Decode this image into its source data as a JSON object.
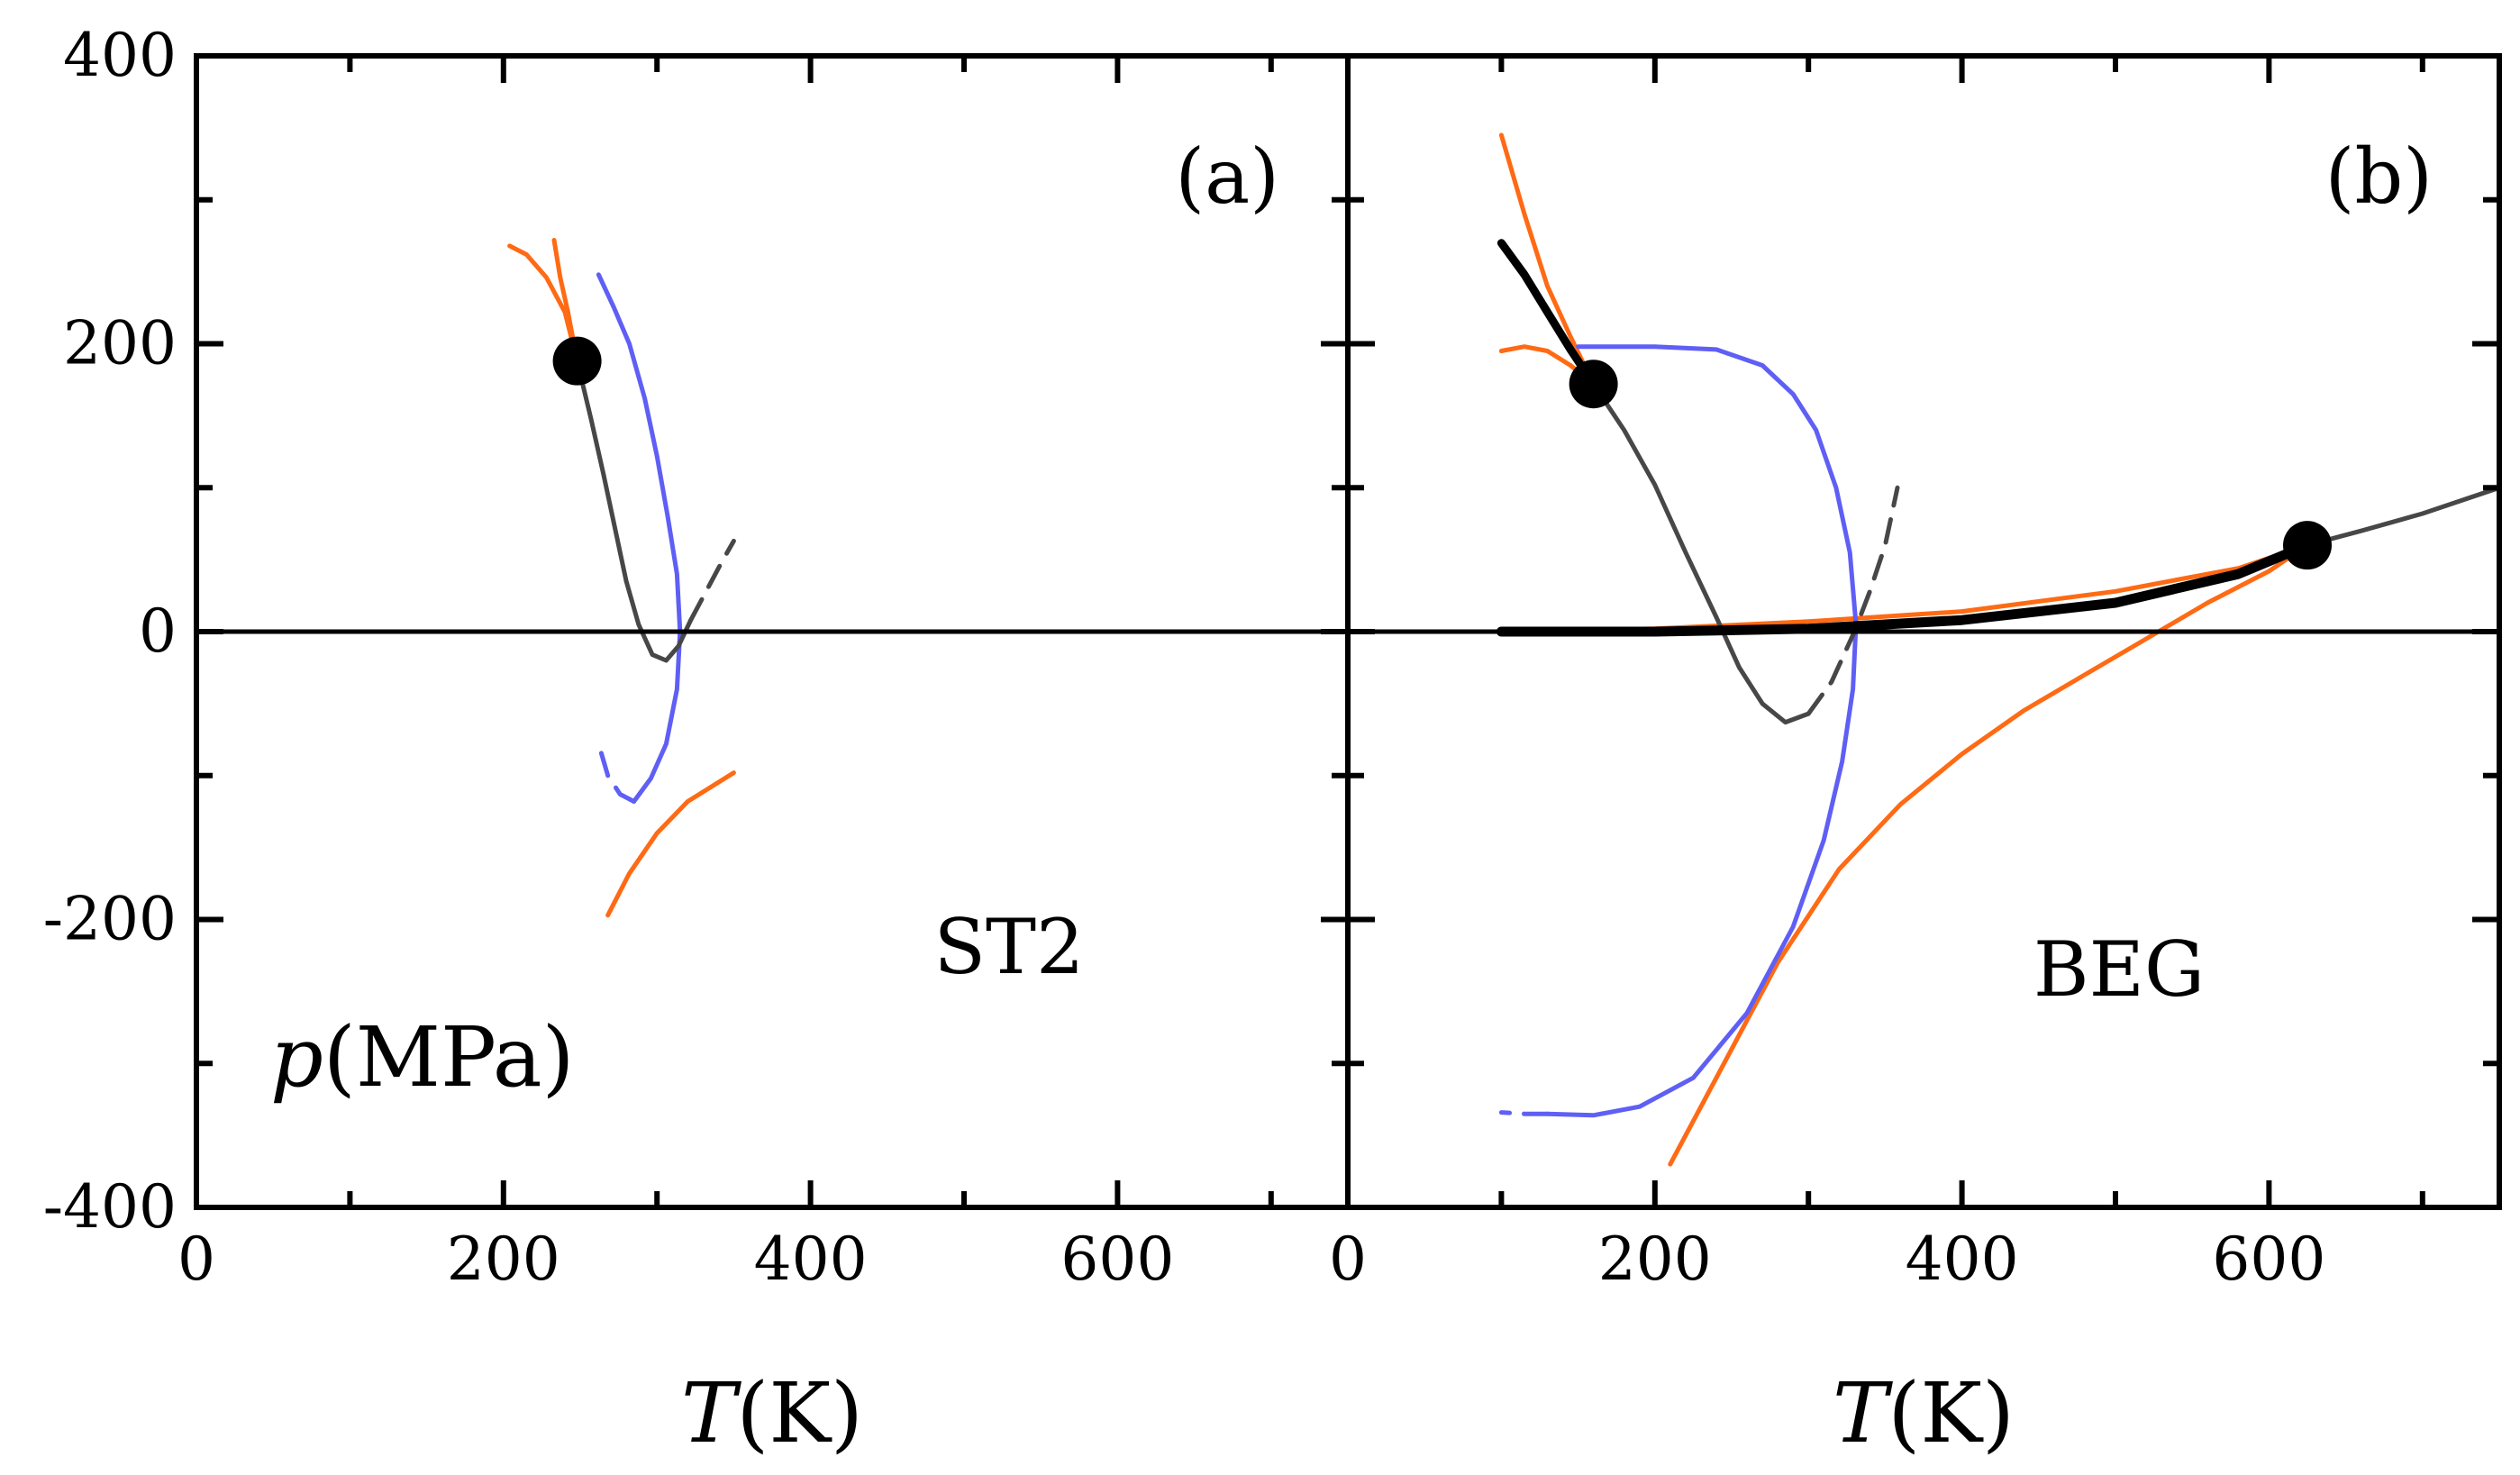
{
  "chart_data": [
    {
      "type": "line",
      "panel": "(a)",
      "model": "ST2",
      "xlabel": {
        "var": "T",
        "unit": "(K)"
      },
      "ylabel": {
        "var": "p",
        "unit": "(MPa)"
      },
      "xlim": [
        0,
        750
      ],
      "ylim": [
        -400,
        400
      ],
      "xticks": [
        0,
        200,
        400,
        600
      ],
      "yticks": [
        400,
        200,
        0,
        -200,
        -400
      ],
      "ytick_labels": [
        "400",
        "200",
        "0",
        "-200",
        "-400"
      ],
      "series": [
        {
          "color": "#ff6a14",
          "style": "solid",
          "width": 5,
          "points": [
            [
              204,
              268
            ],
            [
              215,
              262
            ],
            [
              228,
              246
            ],
            [
              240,
              222
            ],
            [
              248,
              188
            ]
          ]
        },
        {
          "color": "#ff6a14",
          "style": "solid",
          "width": 5,
          "points": [
            [
              233,
              272
            ],
            [
              237,
              246
            ],
            [
              242,
              222
            ],
            [
              248,
              188
            ]
          ]
        },
        {
          "color": "#ff6a14",
          "style": "solid",
          "width": 5,
          "points": [
            [
              268,
              -197
            ],
            [
              282,
              -168
            ],
            [
              300,
              -140
            ],
            [
              320,
              -118
            ],
            [
              350,
              -98
            ]
          ]
        },
        {
          "color": "#5f5ff5",
          "style": "solid",
          "width": 5,
          "points": [
            [
              262,
              248
            ],
            [
              272,
              225
            ],
            [
              282,
              200
            ],
            [
              292,
              162
            ],
            [
              300,
              122
            ],
            [
              307,
              80
            ],
            [
              313,
              40
            ],
            [
              315,
              0
            ],
            [
              313,
              -40
            ],
            [
              306,
              -78
            ],
            [
              296,
              -102
            ],
            [
              285,
              -118
            ]
          ]
        },
        {
          "color": "#5f5ff5",
          "style": "dashed",
          "width": 5,
          "points": [
            [
              285,
              -118
            ],
            [
              276,
              -113
            ],
            [
              268,
              -100
            ],
            [
              262,
              -78
            ]
          ]
        },
        {
          "color": "#474747",
          "style": "solid",
          "width": 5,
          "points": [
            [
              248,
              188
            ],
            [
              257,
              148
            ],
            [
              265,
              110
            ],
            [
              272,
              75
            ],
            [
              280,
              35
            ],
            [
              288,
              5
            ],
            [
              297,
              -16
            ],
            [
              306,
              -20
            ],
            [
              314,
              -10
            ],
            [
              322,
              8
            ]
          ]
        },
        {
          "color": "#474747",
          "style": "dashed",
          "width": 5,
          "points": [
            [
              322,
              8
            ],
            [
              332,
              28
            ],
            [
              342,
              48
            ],
            [
              350,
              63
            ]
          ]
        },
        {
          "color": "#000000",
          "style": "solid",
          "width": 5,
          "points": [
            [
              0,
              0
            ],
            [
              750,
              0
            ]
          ]
        }
      ],
      "markers": [
        {
          "x": 248,
          "y": 188
        }
      ]
    },
    {
      "type": "line",
      "panel": "(b)",
      "model": "BEG",
      "xlabel": {
        "var": "T",
        "unit": "(K)"
      },
      "xlim": [
        0,
        750
      ],
      "ylim": [
        -400,
        400
      ],
      "xticks": [
        0,
        200,
        400,
        600
      ],
      "series": [
        {
          "color": "#ff6a14",
          "style": "solid",
          "width": 5,
          "points": [
            [
              100,
              345
            ],
            [
              115,
              290
            ],
            [
              130,
              240
            ],
            [
              145,
              205
            ],
            [
              160,
              172
            ]
          ]
        },
        {
          "color": "#ff6a14",
          "style": "solid",
          "width": 5,
          "points": [
            [
              100,
              195
            ],
            [
              115,
              198
            ],
            [
              130,
              195
            ],
            [
              145,
              185
            ],
            [
              160,
              172
            ]
          ]
        },
        {
          "color": "#ff6a14",
          "style": "solid",
          "width": 5,
          "points": [
            [
              100,
              0
            ],
            [
              200,
              2
            ],
            [
              300,
              7
            ],
            [
              400,
              14
            ],
            [
              500,
              28
            ],
            [
              580,
              44
            ],
            [
              625,
              60
            ]
          ]
        },
        {
          "color": "#ff6a14",
          "style": "solid",
          "width": 5,
          "points": [
            [
              210,
              -370
            ],
            [
              240,
              -310
            ],
            [
              280,
              -230
            ],
            [
              320,
              -165
            ],
            [
              360,
              -120
            ],
            [
              400,
              -85
            ],
            [
              440,
              -55
            ],
            [
              480,
              -30
            ],
            [
              520,
              -5
            ],
            [
              560,
              20
            ],
            [
              600,
              42
            ],
            [
              625,
              60
            ]
          ]
        },
        {
          "color": "#5f5ff5",
          "style": "solid",
          "width": 5,
          "points": [
            [
              150,
              198
            ],
            [
              200,
              198
            ],
            [
              240,
              196
            ],
            [
              270,
              185
            ],
            [
              290,
              165
            ],
            [
              305,
              140
            ],
            [
              318,
              100
            ],
            [
              327,
              55
            ],
            [
              331,
              5
            ],
            [
              329,
              -40
            ],
            [
              322,
              -90
            ],
            [
              310,
              -145
            ],
            [
              290,
              -205
            ],
            [
              260,
              -265
            ],
            [
              225,
              -310
            ],
            [
              190,
              -330
            ],
            [
              160,
              -336
            ],
            [
              130,
              -335
            ]
          ]
        },
        {
          "color": "#5f5ff5",
          "style": "dashed",
          "width": 5,
          "points": [
            [
              130,
              -335
            ],
            [
              115,
              -335
            ],
            [
              100,
              -334
            ]
          ]
        },
        {
          "color": "#474747",
          "style": "solid",
          "width": 5,
          "points": [
            [
              160,
              172
            ],
            [
              180,
              140
            ],
            [
              200,
              102
            ],
            [
              220,
              55
            ],
            [
              240,
              10
            ],
            [
              255,
              -25
            ],
            [
              270,
              -50
            ],
            [
              285,
              -63
            ],
            [
              300,
              -57
            ]
          ]
        },
        {
          "color": "#474747",
          "style": "dashed",
          "width": 5,
          "points": [
            [
              300,
              -57
            ],
            [
              315,
              -35
            ],
            [
              330,
              0
            ],
            [
              340,
              28
            ],
            [
              350,
              60
            ],
            [
              358,
              100
            ]
          ]
        },
        {
          "color": "#474747",
          "style": "solid",
          "width": 5,
          "points": [
            [
              625,
              60
            ],
            [
              660,
              70
            ],
            [
              700,
              82
            ],
            [
              750,
              100
            ]
          ]
        },
        {
          "color": "#000000",
          "style": "solid",
          "width": 9,
          "points": [
            [
              100,
              270
            ],
            [
              115,
              248
            ],
            [
              130,
              222
            ],
            [
              145,
              196
            ],
            [
              160,
              172
            ]
          ]
        },
        {
          "color": "#000000",
          "style": "solid",
          "width": 11,
          "points": [
            [
              100,
              0
            ],
            [
              200,
              0
            ],
            [
              300,
              2
            ],
            [
              400,
              8
            ],
            [
              500,
              20
            ],
            [
              580,
              40
            ],
            [
              625,
              60
            ]
          ]
        },
        {
          "color": "#000000",
          "style": "solid",
          "width": 5,
          "points": [
            [
              0,
              0
            ],
            [
              750,
              0
            ]
          ]
        }
      ],
      "markers": [
        {
          "x": 160,
          "y": 172
        },
        {
          "x": 625,
          "y": 60
        }
      ]
    }
  ]
}
